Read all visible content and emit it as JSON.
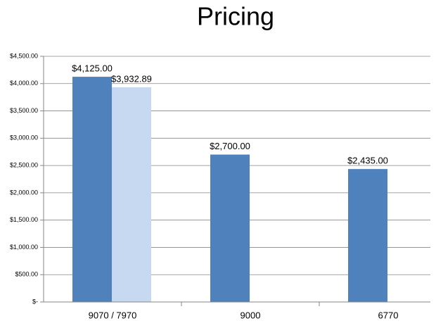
{
  "chart_data": {
    "type": "bar",
    "title": "Pricing",
    "categories": [
      "9070 / 7970",
      "9000",
      "6770"
    ],
    "series": [
      {
        "color": "#4f81bd",
        "values": [
          4125,
          2700,
          2435
        ],
        "value_labels": [
          "$4,125.00",
          "$2,700.00",
          "$2,435.00"
        ]
      },
      {
        "color": "#c6d9f1",
        "values": [
          3932.89,
          null,
          null
        ],
        "value_labels": [
          "$3,932.89",
          null,
          null
        ]
      }
    ],
    "ylim": [
      0,
      4500
    ],
    "yticks": [
      {
        "value": 0,
        "label": "$-"
      },
      {
        "value": 500,
        "label": "$500.00"
      },
      {
        "value": 1000,
        "label": "$1,000.00"
      },
      {
        "value": 1500,
        "label": "$1,500.00"
      },
      {
        "value": 2000,
        "label": "$2,000.00"
      },
      {
        "value": 2500,
        "label": "$2,500.00"
      },
      {
        "value": 3000,
        "label": "$3,000.00"
      },
      {
        "value": 3500,
        "label": "$3,500.00"
      },
      {
        "value": 4000,
        "label": "$4,000.00"
      },
      {
        "value": 4500,
        "label": "$4,500.00"
      }
    ],
    "grid": true
  }
}
